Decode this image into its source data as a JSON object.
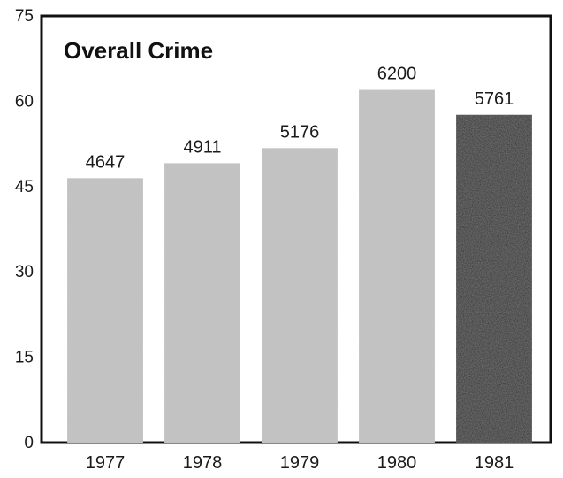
{
  "chart_data": {
    "type": "bar",
    "title": "Overall Crime",
    "xlabel": "",
    "ylabel": "",
    "categories": [
      "1977",
      "1978",
      "1979",
      "1980",
      "1981"
    ],
    "values": [
      4647,
      4911,
      5176,
      6200,
      5761
    ],
    "data_labels": [
      "4647",
      "4911",
      "5176",
      "6200",
      "5761"
    ],
    "ylim": [
      0,
      75
    ],
    "y_ticks": [
      0,
      15,
      30,
      45,
      60,
      75
    ],
    "y_tick_labels": [
      "0",
      "15",
      "30",
      "45",
      "60",
      "75"
    ],
    "y_scale_divisor": 100,
    "grid": false,
    "legend": "none",
    "colors": {
      "bar": "#c4c4c4",
      "highlight_bar": "#222222",
      "frame": "#111111"
    },
    "highlight_category": "1981"
  }
}
